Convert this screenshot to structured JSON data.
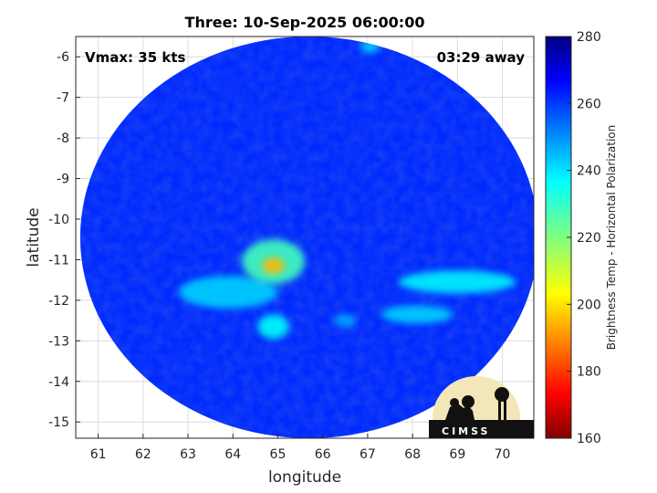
{
  "chart_data": {
    "type": "heatmap",
    "title": "Three: 10-Sep-2025 06:00:00",
    "xlabel": "longitude",
    "ylabel": "latitude",
    "xlim": [
      60.5,
      70.7
    ],
    "ylim": [
      -15.4,
      -5.5
    ],
    "xticks": [
      "61",
      "62",
      "63",
      "64",
      "65",
      "66",
      "67",
      "68",
      "69",
      "70"
    ],
    "yticks": [
      "-6",
      "-7",
      "-8",
      "-9",
      "-10",
      "-11",
      "-12",
      "-13",
      "-14",
      "-15"
    ],
    "grid": true,
    "annotations": {
      "vmax": "Vmax: 35 kts",
      "time_away": "03:29 away"
    },
    "colorbar": {
      "label": "Brightness Temp - Horizontal Polarization",
      "range": [
        160,
        280
      ],
      "ticks": [
        "280",
        "260",
        "240",
        "220",
        "200",
        "180",
        "160"
      ],
      "colormap": "jet"
    },
    "swath": {
      "center": [
        65.7,
        -10.45
      ],
      "radius_lon": 5.1,
      "radius_lat": 4.95
    },
    "background_value": 262,
    "features": [
      {
        "name": "core",
        "lon": 64.9,
        "lat": -11.15,
        "value": 195,
        "radius_lon": 0.25,
        "radius_lat": 0.2
      },
      {
        "name": "inner-band",
        "lon": 64.9,
        "lat": -11.05,
        "value": 228,
        "radius_lon": 0.7,
        "radius_lat": 0.55
      },
      {
        "name": "west-arc",
        "lon": 63.9,
        "lat": -11.8,
        "value": 242,
        "radius_lon": 1.1,
        "radius_lat": 0.4
      },
      {
        "name": "south-cell",
        "lon": 64.9,
        "lat": -12.65,
        "value": 236,
        "radius_lon": 0.35,
        "radius_lat": 0.3
      },
      {
        "name": "east-band-1",
        "lon": 69.0,
        "lat": -11.55,
        "value": 238,
        "radius_lon": 1.3,
        "radius_lat": 0.28
      },
      {
        "name": "east-band-2",
        "lon": 68.1,
        "lat": -12.35,
        "value": 242,
        "radius_lon": 0.8,
        "radius_lat": 0.22
      },
      {
        "name": "east-fleck",
        "lon": 66.5,
        "lat": -12.5,
        "value": 246,
        "radius_lon": 0.25,
        "radius_lat": 0.15
      },
      {
        "name": "north-fleck",
        "lon": 67.05,
        "lat": -5.75,
        "value": 240,
        "radius_lon": 0.2,
        "radius_lat": 0.15
      }
    ]
  },
  "logo": {
    "text": "CIMSS"
  },
  "colors": {
    "background": "#ffffff",
    "grid": "#dcdcdc",
    "axis": "#262626"
  }
}
